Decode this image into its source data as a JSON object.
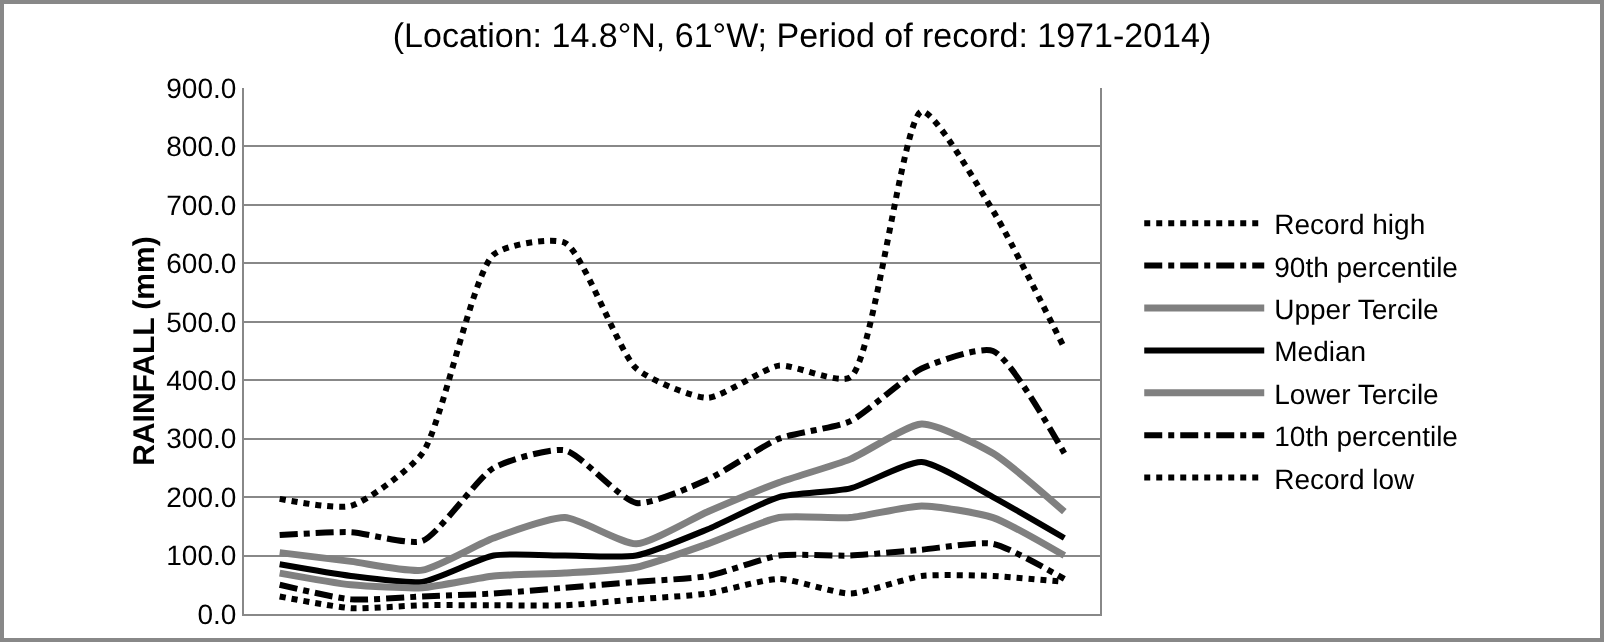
{
  "chart_data": {
    "type": "line",
    "title": "(Location: 14.8°N, 61°W; Period of record: 1971-2014)",
    "ylabel": "RAINFALL (mm)",
    "categories": [
      null,
      null,
      null,
      null,
      null,
      null,
      null,
      null,
      null,
      null,
      null,
      null
    ],
    "series": [
      {
        "name": "Record high",
        "color": "#000000",
        "line_style": "dotted",
        "values": [
          197,
          185,
          275,
          615,
          635,
          420,
          370,
          425,
          405,
          860,
          690,
          455
        ]
      },
      {
        "name": "90th percentile",
        "color": "#000000",
        "line_style": "dashed",
        "values": [
          135,
          140,
          125,
          250,
          280,
          190,
          230,
          300,
          330,
          420,
          450,
          275
        ]
      },
      {
        "name": "Upper Tercile",
        "color": "#808080",
        "line_style": "solid",
        "values": [
          105,
          90,
          75,
          130,
          165,
          120,
          175,
          225,
          265,
          325,
          275,
          175
        ]
      },
      {
        "name": "Median",
        "color": "#000000",
        "line_style": "solid",
        "values": [
          85,
          65,
          55,
          100,
          100,
          100,
          145,
          200,
          215,
          260,
          200,
          130
        ]
      },
      {
        "name": "Lower Tercile",
        "color": "#808080",
        "line_style": "solid",
        "values": [
          70,
          50,
          45,
          65,
          70,
          80,
          120,
          165,
          165,
          185,
          165,
          100
        ]
      },
      {
        "name": "10th percentile",
        "color": "#000000",
        "line_style": "dashed",
        "values": [
          50,
          25,
          30,
          35,
          45,
          55,
          65,
          100,
          100,
          110,
          120,
          60
        ]
      },
      {
        "name": "Record low",
        "color": "#000000",
        "line_style": "dotted",
        "values": [
          30,
          10,
          15,
          15,
          15,
          25,
          35,
          60,
          35,
          65,
          65,
          55
        ]
      }
    ],
    "ylim": [
      0,
      900
    ],
    "yticks": [
      {
        "value": 0,
        "label": "0.0"
      },
      {
        "value": 100,
        "label": "100.0"
      },
      {
        "value": 200,
        "label": "200.0"
      },
      {
        "value": 300,
        "label": "300.0"
      },
      {
        "value": 400,
        "label": "400.0"
      },
      {
        "value": 500,
        "label": "500.0"
      },
      {
        "value": 600,
        "label": "600.0"
      },
      {
        "value": 700,
        "label": "700.0"
      },
      {
        "value": 800,
        "label": "800.0"
      },
      {
        "value": 900,
        "label": "900.0"
      }
    ],
    "grid": "y",
    "legend": "right",
    "tick_labels": "y",
    "marker": "none"
  }
}
